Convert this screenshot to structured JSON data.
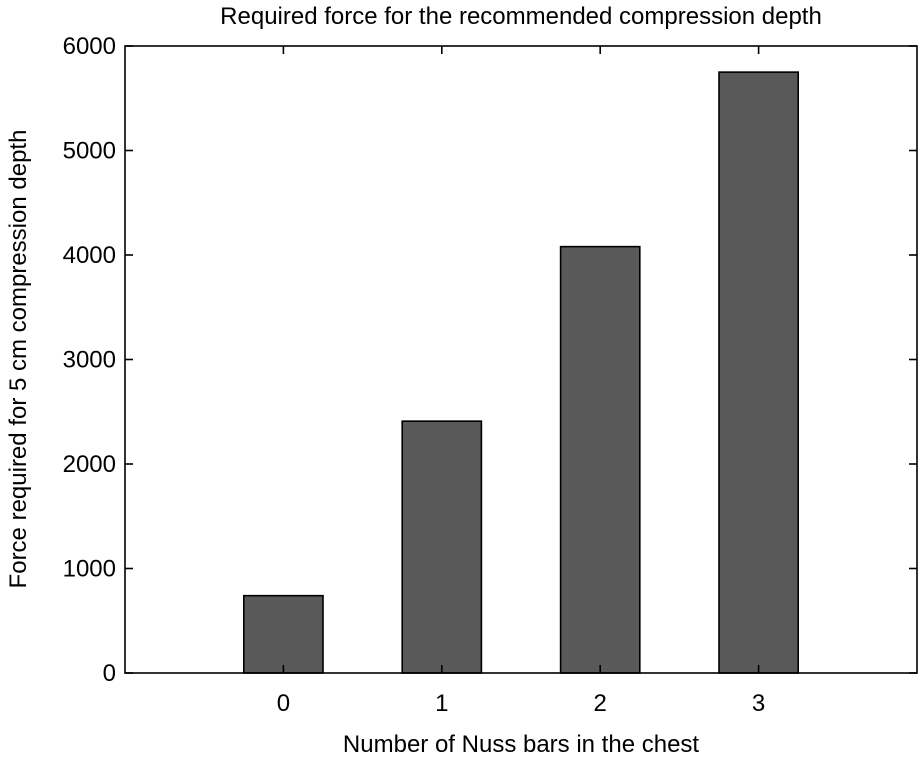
{
  "chart_data": {
    "type": "bar",
    "title": "Required force for the recommended compression depth",
    "xlabel": "Number of Nuss bars in the chest",
    "ylabel": "Force required for 5 cm compression depth",
    "categories": [
      "0",
      "1",
      "2",
      "3"
    ],
    "values": [
      740,
      2410,
      4080,
      5750
    ],
    "ylim": [
      0,
      6000
    ],
    "yticks": [
      "0",
      "1000",
      "2000",
      "3000",
      "4000",
      "5000",
      "6000"
    ],
    "grid": false,
    "bar_color": "#595959",
    "edge_color": "#000000"
  }
}
